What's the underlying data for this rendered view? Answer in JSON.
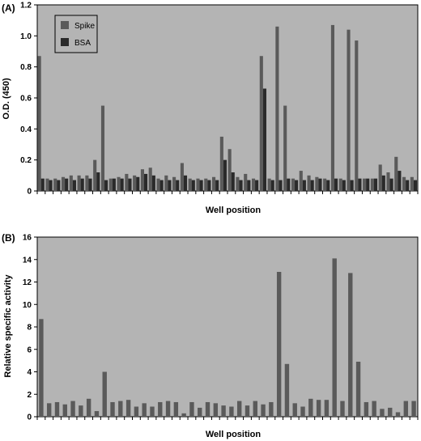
{
  "chart_data": [
    {
      "type": "bar",
      "panel_label": "(A)",
      "xlabel": "Well position",
      "ylabel": "O.D. (450)",
      "ylim": [
        0,
        1.2
      ],
      "yticks": [
        "0",
        "0.2",
        "0.4",
        "0.6",
        "0.8",
        "1.0",
        "1.2"
      ],
      "ytick_values": [
        0,
        0.2,
        0.4,
        0.6,
        0.8,
        1.0,
        1.2
      ],
      "grid": false,
      "legend_position": "top-left",
      "series": [
        {
          "name": "Spike",
          "color": "#5a5a5a",
          "values": [
            0.87,
            0.08,
            0.08,
            0.09,
            0.1,
            0.1,
            0.1,
            0.2,
            0.55,
            0.08,
            0.09,
            0.11,
            0.1,
            0.14,
            0.15,
            0.08,
            0.1,
            0.09,
            0.18,
            0.08,
            0.08,
            0.08,
            0.09,
            0.35,
            0.27,
            0.09,
            0.11,
            0.08,
            0.87,
            0.08,
            1.06,
            0.55,
            0.08,
            0.13,
            0.1,
            0.09,
            0.08,
            1.07,
            0.08,
            1.04,
            0.97,
            0.08,
            0.08,
            0.17,
            0.12,
            0.22,
            0.09,
            0.09
          ]
        },
        {
          "name": "BSA",
          "color": "#2a2a2a",
          "values": [
            0.08,
            0.07,
            0.07,
            0.08,
            0.07,
            0.08,
            0.08,
            0.12,
            0.07,
            0.08,
            0.08,
            0.08,
            0.09,
            0.11,
            0.1,
            0.07,
            0.07,
            0.07,
            0.1,
            0.07,
            0.07,
            0.07,
            0.07,
            0.2,
            0.12,
            0.07,
            0.07,
            0.07,
            0.66,
            0.07,
            0.07,
            0.08,
            0.07,
            0.07,
            0.07,
            0.08,
            0.07,
            0.08,
            0.07,
            0.07,
            0.08,
            0.08,
            0.08,
            0.1,
            0.08,
            0.13,
            0.07,
            0.07
          ]
        }
      ]
    },
    {
      "type": "bar",
      "panel_label": "(B)",
      "xlabel": "Well position",
      "ylabel": "Relative specific activity",
      "ylim": [
        0,
        16
      ],
      "yticks": [
        "0",
        "2",
        "4",
        "6",
        "8",
        "10",
        "12",
        "14",
        "16"
      ],
      "ytick_values": [
        0,
        2,
        4,
        6,
        8,
        10,
        12,
        14,
        16
      ],
      "grid": false,
      "series": [
        {
          "color": "#5a5a5a",
          "values": [
            8.7,
            1.2,
            1.3,
            1.1,
            1.4,
            1.0,
            1.6,
            0.5,
            4.0,
            1.3,
            1.4,
            1.5,
            0.9,
            1.2,
            0.9,
            1.3,
            1.4,
            1.3,
            0.3,
            1.3,
            0.8,
            1.3,
            1.2,
            1.0,
            0.9,
            1.4,
            1.0,
            1.4,
            1.1,
            1.3,
            12.9,
            4.7,
            1.2,
            0.9,
            1.6,
            1.5,
            1.5,
            14.1,
            1.4,
            12.8,
            4.9,
            1.3,
            1.4,
            0.7,
            0.8,
            0.4,
            1.4,
            1.4
          ]
        }
      ]
    }
  ]
}
